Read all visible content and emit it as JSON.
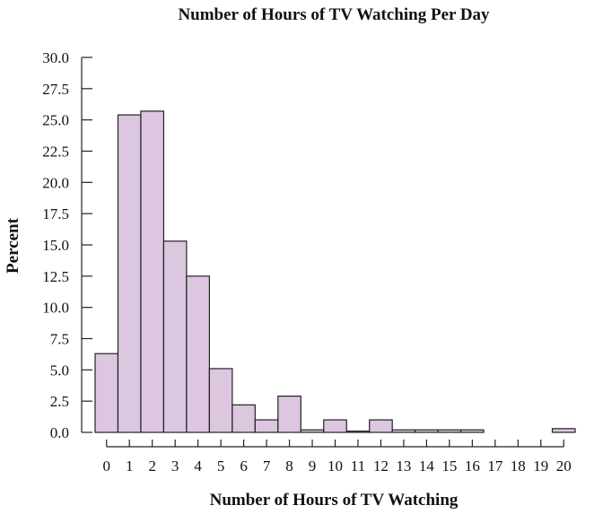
{
  "chart_data": {
    "type": "bar",
    "title": "Number of Hours of TV Watching Per Day",
    "xlabel": "Number of Hours of TV Watching",
    "ylabel": "Percent",
    "ylim": [
      0,
      30
    ],
    "xlim": [
      -0.5,
      20.5
    ],
    "y_ticks": [
      "0.0",
      "2.5",
      "5.0",
      "7.5",
      "10.0",
      "12.5",
      "15.0",
      "17.5",
      "20.0",
      "22.5",
      "25.0",
      "27.5",
      "30.0"
    ],
    "x_ticks": [
      "0",
      "1",
      "2",
      "3",
      "4",
      "5",
      "6",
      "7",
      "8",
      "9",
      "10",
      "11",
      "12",
      "13",
      "14",
      "15",
      "16",
      "17",
      "18",
      "19",
      "20"
    ],
    "categories": [
      0,
      1,
      2,
      3,
      4,
      5,
      6,
      7,
      8,
      9,
      10,
      11,
      12,
      13,
      14,
      15,
      16,
      17,
      18,
      19,
      20
    ],
    "values": [
      6.3,
      25.4,
      25.7,
      15.3,
      12.5,
      5.1,
      2.2,
      1.0,
      2.9,
      0.2,
      1.0,
      0.1,
      1.0,
      0.2,
      0.2,
      0.2,
      0.2,
      0.0,
      0.0,
      0.0,
      0.3
    ],
    "grid": false,
    "bar_fill": "#dcc6e0",
    "bar_stroke": "#222222"
  }
}
